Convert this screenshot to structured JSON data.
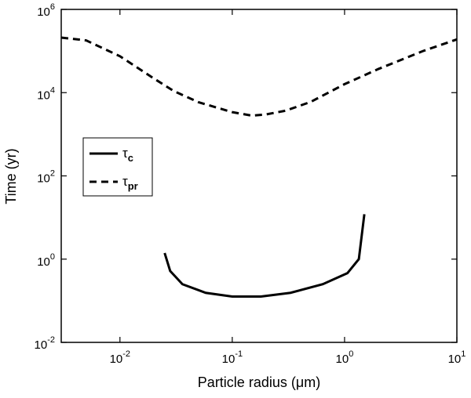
{
  "chart_data": {
    "type": "line",
    "x_label": "Particle radius (μm)",
    "y_label": "Time (yr)",
    "xscale": "log",
    "yscale": "log",
    "xlim": [
      0.003,
      10
    ],
    "ylim": [
      0.01,
      1000000
    ],
    "xticks": [
      {
        "value": 0.01,
        "label": "10",
        "sup": "-2"
      },
      {
        "value": 0.1,
        "label": "10",
        "sup": "-1"
      },
      {
        "value": 1,
        "label": "10",
        "sup": "0"
      },
      {
        "value": 10,
        "label": "10",
        "sup": "1"
      }
    ],
    "yticks": [
      {
        "value": 0.01,
        "label": "10",
        "sup": "-2"
      },
      {
        "value": 1,
        "label": "10",
        "sup": "0"
      },
      {
        "value": 100,
        "label": "10",
        "sup": "2"
      },
      {
        "value": 10000,
        "label": "10",
        "sup": "4"
      },
      {
        "value": 1000000,
        "label": "10",
        "sup": "6"
      }
    ],
    "legend": "left",
    "series": [
      {
        "name": "τ",
        "subscript": "c",
        "color": "#000000",
        "dash": "solid",
        "x": [
          0.025,
          0.028,
          0.036,
          0.058,
          0.1,
          0.18,
          0.33,
          0.64,
          1.06,
          1.34,
          1.5
        ],
        "values": [
          1.4,
          0.52,
          0.25,
          0.155,
          0.126,
          0.126,
          0.155,
          0.25,
          0.46,
          1.0,
          12
        ]
      },
      {
        "name": "τ",
        "subscript": "pr",
        "color": "#000000",
        "dash": "dashed",
        "x": [
          0.003,
          0.005,
          0.01,
          0.02,
          0.03,
          0.05,
          0.1,
          0.15,
          0.2,
          0.3,
          0.5,
          1,
          2,
          5,
          10
        ],
        "values": [
          210000,
          180000,
          75000,
          22000,
          11000,
          5900,
          3400,
          2800,
          3000,
          3700,
          6000,
          16000,
          37000,
          100000,
          190000
        ]
      }
    ]
  }
}
